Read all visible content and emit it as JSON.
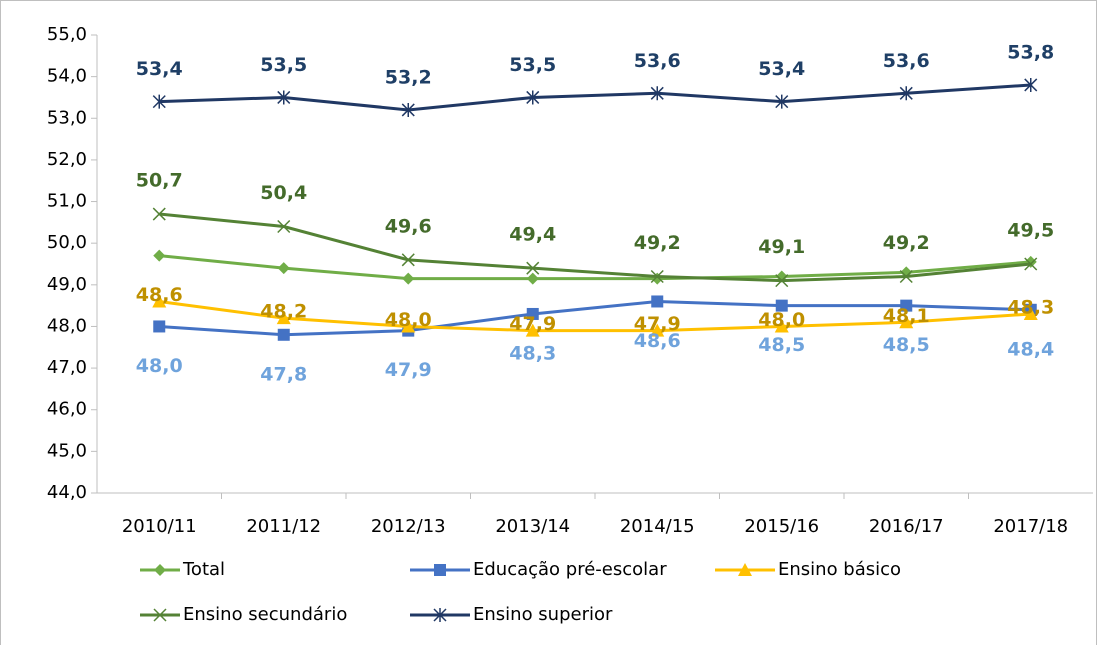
{
  "chart_data": {
    "type": "line",
    "categories": [
      "2010/11",
      "2011/12",
      "2012/13",
      "2013/14",
      "2014/15",
      "2015/16",
      "2016/17",
      "2017/18"
    ],
    "ylim": [
      44,
      55
    ],
    "yticks": [
      {
        "value": 44,
        "label": "44,0"
      },
      {
        "value": 45,
        "label": "45,0"
      },
      {
        "value": 46,
        "label": "46,0"
      },
      {
        "value": 47,
        "label": "47,0"
      },
      {
        "value": 48,
        "label": "48,0"
      },
      {
        "value": 49,
        "label": "49,0"
      },
      {
        "value": 50,
        "label": "50,0"
      },
      {
        "value": 51,
        "label": "51,0"
      },
      {
        "value": 52,
        "label": "52,0"
      },
      {
        "value": 53,
        "label": "53,0"
      },
      {
        "value": 54,
        "label": "54,0"
      },
      {
        "value": 55,
        "label": "55,0"
      }
    ],
    "grid": false,
    "series": [
      {
        "name": "Total",
        "color": "#70ad47",
        "marker": "diamond",
        "values": [
          49.7,
          49.4,
          49.15,
          49.15,
          49.15,
          49.2,
          49.3,
          49.55
        ]
      },
      {
        "name": "Educação pré-escolar",
        "color": "#4472c4",
        "marker": "square",
        "label_color": "#6fa3dc",
        "values": [
          48.0,
          47.8,
          47.9,
          48.3,
          48.6,
          48.5,
          48.5,
          48.4
        ],
        "value_labels": [
          "48,0",
          "47,8",
          "47,9",
          "48,3",
          "48,6",
          "48,5",
          "48,5",
          "48,4"
        ]
      },
      {
        "name": "Ensino básico",
        "color": "#ffc000",
        "marker": "triangle",
        "label_color": "#bf9000",
        "values": [
          48.6,
          48.2,
          48.0,
          47.9,
          47.9,
          48.0,
          48.1,
          48.3
        ],
        "value_labels": [
          "48,6",
          "48,2",
          "48,0",
          "47,9",
          "47,9",
          "48,0",
          "48,1",
          "48,3"
        ]
      },
      {
        "name": "Ensino secundário",
        "color": "#548235",
        "marker": "x",
        "label_color": "#446b2b",
        "values": [
          50.7,
          50.4,
          49.6,
          49.4,
          49.2,
          49.1,
          49.2,
          49.5
        ],
        "value_labels": [
          "50,7",
          "50,4",
          "49,6",
          "49,4",
          "49,2",
          "49,1",
          "49,2",
          "49,5"
        ]
      },
      {
        "name": "Ensino superior",
        "color": "#203864",
        "marker": "star",
        "label_color": "#1f3f66",
        "values": [
          53.4,
          53.5,
          53.2,
          53.5,
          53.6,
          53.4,
          53.6,
          53.8
        ],
        "value_labels": [
          "53,4",
          "53,5",
          "53,2",
          "53,5",
          "53,6",
          "53,4",
          "53,6",
          "53,8"
        ]
      }
    ]
  }
}
